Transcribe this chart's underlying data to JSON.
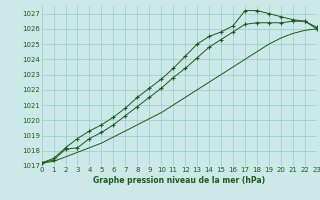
{
  "title": "Graphe pression niveau de la mer (hPa)",
  "bg_color": "#cce8e8",
  "grid_color": "#99cccc",
  "line_color": "#1a5c1a",
  "ylim": [
    1017,
    1027.5
  ],
  "xlim": [
    0,
    23
  ],
  "yticks": [
    1017,
    1018,
    1019,
    1020,
    1021,
    1022,
    1023,
    1024,
    1025,
    1026,
    1027
  ],
  "xticks": [
    0,
    1,
    2,
    3,
    4,
    5,
    6,
    7,
    8,
    9,
    10,
    11,
    12,
    13,
    14,
    15,
    16,
    17,
    18,
    19,
    20,
    21,
    22,
    23
  ],
  "series": [
    {
      "x": [
        0,
        1,
        2,
        3,
        4,
        5,
        6,
        7,
        8,
        9,
        10,
        11,
        12,
        13,
        14,
        15,
        16,
        17,
        18,
        19,
        20,
        21,
        22,
        23
      ],
      "y": [
        1017.2,
        1017.4,
        1018.1,
        1018.2,
        1018.8,
        1019.2,
        1019.7,
        1020.3,
        1020.9,
        1021.5,
        1022.1,
        1022.8,
        1023.4,
        1024.1,
        1024.8,
        1025.3,
        1025.8,
        1026.3,
        1026.4,
        1026.4,
        1026.4,
        1026.5,
        1026.5,
        1026.0
      ],
      "marker": "+"
    },
    {
      "x": [
        0,
        1,
        2,
        3,
        4,
        5,
        6,
        7,
        8,
        9,
        10,
        11,
        12,
        13,
        14,
        15,
        16,
        17,
        18,
        19,
        20,
        21,
        22,
        23
      ],
      "y": [
        1017.2,
        1017.5,
        1018.2,
        1018.8,
        1019.3,
        1019.7,
        1020.2,
        1020.8,
        1021.5,
        1022.1,
        1022.7,
        1023.4,
        1024.2,
        1025.0,
        1025.5,
        1025.8,
        1026.2,
        1027.2,
        1027.2,
        1027.0,
        1026.8,
        1026.6,
        1026.5,
        1026.1
      ],
      "marker": "+"
    },
    {
      "x": [
        0,
        1,
        2,
        3,
        4,
        5,
        6,
        7,
        8,
        9,
        10,
        11,
        12,
        13,
        14,
        15,
        16,
        17,
        18,
        19,
        20,
        21,
        22,
        23
      ],
      "y": [
        1017.2,
        1017.3,
        1017.6,
        1017.9,
        1018.2,
        1018.5,
        1018.9,
        1019.3,
        1019.7,
        1020.1,
        1020.5,
        1021.0,
        1021.5,
        1022.0,
        1022.5,
        1023.0,
        1023.5,
        1024.0,
        1024.5,
        1025.0,
        1025.4,
        1025.7,
        1025.9,
        1026.0
      ],
      "marker": null
    }
  ]
}
